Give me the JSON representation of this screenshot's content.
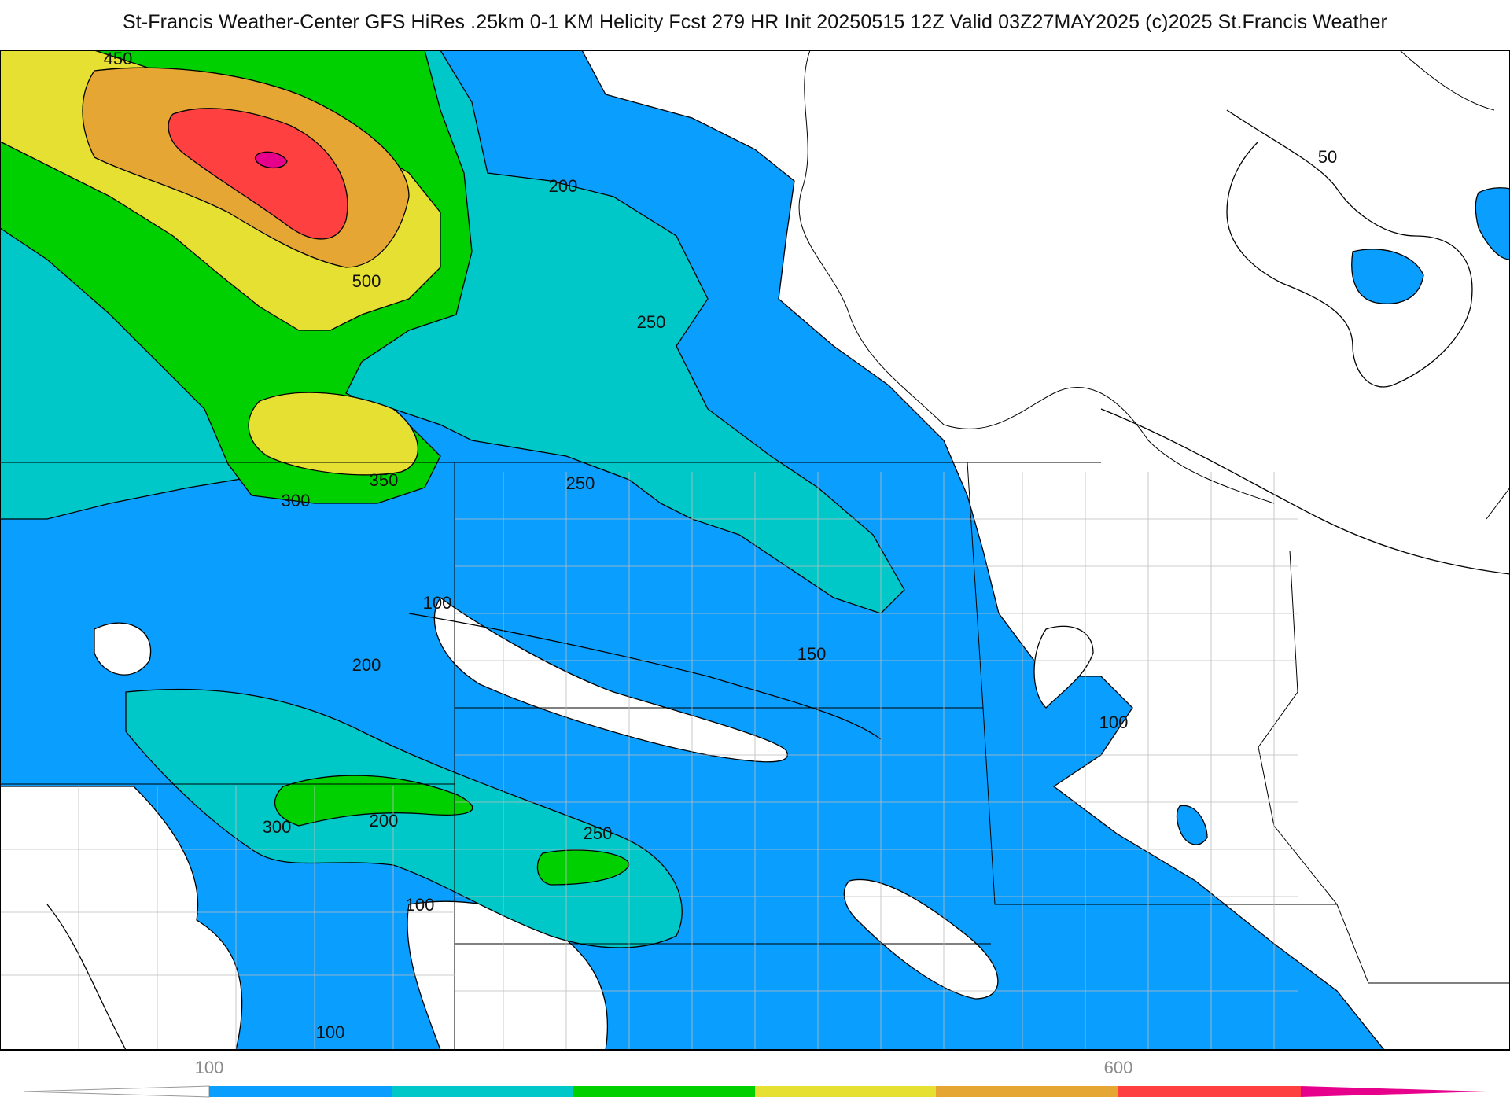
{
  "title": "St-Francis Weather-Center GFS HiRes .25km 0-1 KM Helicity Fcst 279 HR Init 20250515 12Z  Valid 03Z27MAY2025    (c)2025 St.Francis Weather",
  "contour_labels": [
    "450",
    "500",
    "200",
    "250",
    "250",
    "350",
    "300",
    "100",
    "150",
    "200",
    "100",
    "300",
    "200",
    "250",
    "100",
    "100",
    "50"
  ],
  "colorbar": {
    "ticks": [
      "100",
      "600"
    ],
    "colors": [
      "#0a9eff",
      "#00c8c8",
      "#00d000",
      "#e6e033",
      "#e6a633",
      "#ff4040",
      "#e6008c"
    ]
  },
  "legend_fill_colors": {
    "100-150": "#0a9eff",
    "150-250": "#00c8c8",
    "250-350": "#00d000",
    "350-450": "#e6e033",
    "450-550": "#e6a633",
    "550-650": "#ff4040",
    "650+": "#e6008c"
  }
}
